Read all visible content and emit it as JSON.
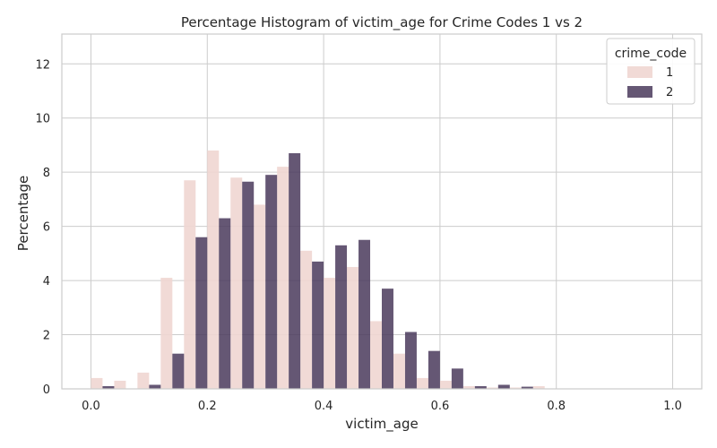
{
  "chart_data": {
    "type": "bar",
    "title": "Percentage Histogram of victim_age for Crime Codes 1 vs 2",
    "xlabel": "victim_age",
    "ylabel": "Percentage",
    "xlim": [
      -0.05,
      1.05
    ],
    "ylim": [
      0,
      13.1
    ],
    "xticks": [
      0.0,
      0.2,
      0.4,
      0.6,
      0.8,
      1.0
    ],
    "xtick_labels": [
      "0.0",
      "0.2",
      "0.4",
      "0.6",
      "0.8",
      "1.0"
    ],
    "yticks": [
      0,
      2,
      4,
      6,
      8,
      10,
      12
    ],
    "ytick_labels": [
      "0",
      "2",
      "4",
      "6",
      "8",
      "10",
      "12"
    ],
    "grid": true,
    "bin_edges": [
      0.0,
      0.04,
      0.08,
      0.12,
      0.16,
      0.2,
      0.24,
      0.28,
      0.32,
      0.36,
      0.4,
      0.44,
      0.48,
      0.52,
      0.56,
      0.6,
      0.64,
      0.68,
      0.72,
      0.76,
      0.8,
      0.84,
      0.88,
      0.92,
      0.96,
      1.0
    ],
    "legend": {
      "title": "crime_code",
      "position": "top-right"
    },
    "series": [
      {
        "name": "1",
        "color": "#efd6d1",
        "values": [
          0.4,
          0.3,
          0.6,
          4.1,
          7.7,
          8.8,
          7.8,
          6.8,
          8.2,
          5.1,
          4.1,
          4.5,
          2.5,
          1.3,
          0.4,
          0.3,
          0.1,
          0.05,
          0.05,
          0.1,
          0.0,
          0.0,
          0.0,
          0.0,
          0.0
        ]
      },
      {
        "name": "2",
        "color": "#4a3a5c",
        "values": [
          0.1,
          0.0,
          0.15,
          1.3,
          5.6,
          6.3,
          7.65,
          7.9,
          8.7,
          4.7,
          5.3,
          5.5,
          3.7,
          2.1,
          1.4,
          0.75,
          0.1,
          0.15,
          0.08,
          0.0,
          0.0,
          0.0,
          0.0,
          0.0,
          0.0
        ]
      }
    ]
  }
}
